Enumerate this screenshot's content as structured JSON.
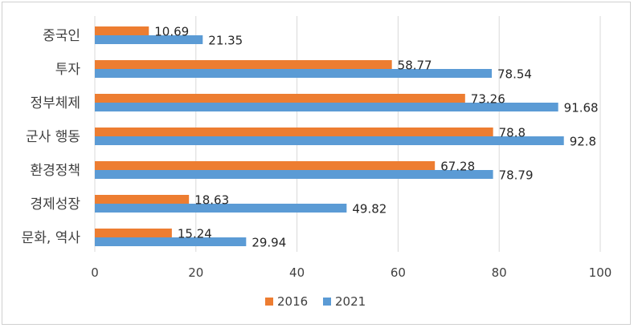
{
  "chart_data": {
    "type": "bar",
    "orientation": "horizontal",
    "categories": [
      "중국인",
      "투자",
      "정부체제",
      "군사 행동",
      "환경정책",
      "경제성장",
      "문화, 역사"
    ],
    "series": [
      {
        "name": "2016",
        "color": "#ED7D31",
        "values": [
          10.69,
          58.77,
          73.26,
          78.8,
          67.28,
          18.63,
          15.24
        ]
      },
      {
        "name": "2021",
        "color": "#5B9BD5",
        "values": [
          21.35,
          78.54,
          91.68,
          92.8,
          78.79,
          49.82,
          29.94
        ]
      }
    ],
    "xlim": [
      0,
      100
    ],
    "xticks": [
      0,
      20,
      40,
      60,
      80,
      100
    ],
    "grid": true,
    "legend": "bottom",
    "data_labels": true
  }
}
